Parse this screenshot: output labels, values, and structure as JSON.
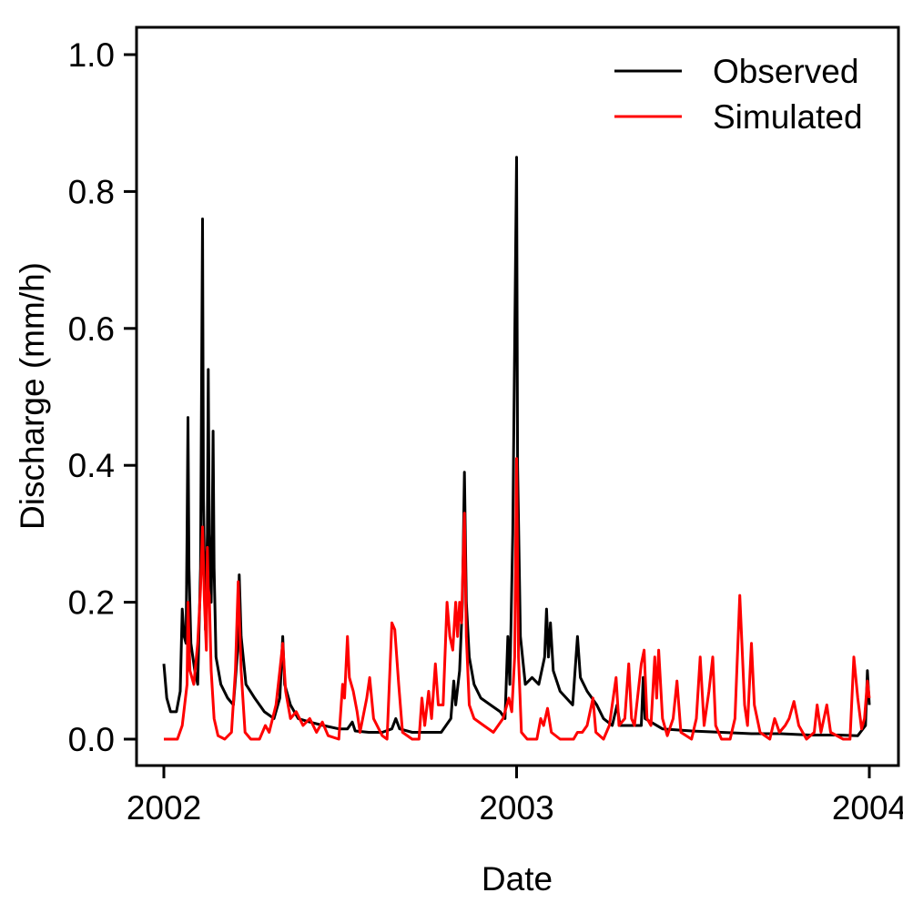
{
  "chart_data": {
    "type": "line",
    "xlabel": "Date",
    "ylabel": "Discharge (mm/h)",
    "xlim": [
      "2002-01-01",
      "2004-01-01"
    ],
    "ylim": [
      0,
      1.0
    ],
    "x_ticks": [
      "2002-01-01",
      "2003-01-01",
      "2004-01-01"
    ],
    "x_tick_labels": [
      "2002",
      "2003",
      "2004"
    ],
    "y_ticks": [
      0.0,
      0.2,
      0.4,
      0.6,
      0.8,
      1.0
    ],
    "y_tick_labels": [
      "0.0",
      "0.2",
      "0.4",
      "0.6",
      "0.8",
      "1.0"
    ],
    "grid": false,
    "legend_position": "top-right",
    "series": [
      {
        "name": "Observed",
        "color": "#000000",
        "points": [
          [
            "2002-01-01",
            0.11
          ],
          [
            "2002-01-04",
            0.06
          ],
          [
            "2002-01-08",
            0.04
          ],
          [
            "2002-01-14",
            0.04
          ],
          [
            "2002-01-18",
            0.07
          ],
          [
            "2002-01-20",
            0.19
          ],
          [
            "2002-01-22",
            0.15
          ],
          [
            "2002-01-24",
            0.14
          ],
          [
            "2002-01-25",
            0.3
          ],
          [
            "2002-01-26",
            0.47
          ],
          [
            "2002-01-27",
            0.25
          ],
          [
            "2002-01-29",
            0.14
          ],
          [
            "2002-02-02",
            0.1
          ],
          [
            "2002-02-05",
            0.08
          ],
          [
            "2002-02-08",
            0.25
          ],
          [
            "2002-02-10",
            0.76
          ],
          [
            "2002-02-11",
            0.35
          ],
          [
            "2002-02-13",
            0.16
          ],
          [
            "2002-02-15",
            0.3
          ],
          [
            "2002-02-16",
            0.54
          ],
          [
            "2002-02-17",
            0.3
          ],
          [
            "2002-02-19",
            0.2
          ],
          [
            "2002-02-20",
            0.3
          ],
          [
            "2002-02-21",
            0.45
          ],
          [
            "2002-02-22",
            0.25
          ],
          [
            "2002-02-24",
            0.12
          ],
          [
            "2002-03-01",
            0.08
          ],
          [
            "2002-03-08",
            0.06
          ],
          [
            "2002-03-14",
            0.05
          ],
          [
            "2002-03-19",
            0.14
          ],
          [
            "2002-03-20",
            0.24
          ],
          [
            "2002-03-22",
            0.15
          ],
          [
            "2002-03-27",
            0.08
          ],
          [
            "2002-04-05",
            0.06
          ],
          [
            "2002-04-15",
            0.04
          ],
          [
            "2002-04-25",
            0.03
          ],
          [
            "2002-05-01",
            0.06
          ],
          [
            "2002-05-04",
            0.15
          ],
          [
            "2002-05-06",
            0.08
          ],
          [
            "2002-05-12",
            0.05
          ],
          [
            "2002-05-20",
            0.03
          ],
          [
            "2002-06-01",
            0.025
          ],
          [
            "2002-06-15",
            0.02
          ],
          [
            "2002-07-01",
            0.015
          ],
          [
            "2002-07-10",
            0.015
          ],
          [
            "2002-07-15",
            0.025
          ],
          [
            "2002-07-18",
            0.012
          ],
          [
            "2002-08-01",
            0.01
          ],
          [
            "2002-08-15",
            0.01
          ],
          [
            "2002-08-25",
            0.015
          ],
          [
            "2002-08-29",
            0.03
          ],
          [
            "2002-09-02",
            0.015
          ],
          [
            "2002-09-15",
            0.01
          ],
          [
            "2002-10-01",
            0.01
          ],
          [
            "2002-10-15",
            0.01
          ],
          [
            "2002-10-25",
            0.03
          ],
          [
            "2002-10-28",
            0.085
          ],
          [
            "2002-10-30",
            0.05
          ],
          [
            "2002-11-03",
            0.1
          ],
          [
            "2002-11-06",
            0.2
          ],
          [
            "2002-11-08",
            0.39
          ],
          [
            "2002-11-10",
            0.2
          ],
          [
            "2002-11-13",
            0.12
          ],
          [
            "2002-11-18",
            0.08
          ],
          [
            "2002-11-25",
            0.06
          ],
          [
            "2002-12-05",
            0.05
          ],
          [
            "2002-12-15",
            0.04
          ],
          [
            "2002-12-20",
            0.03
          ],
          [
            "2002-12-23",
            0.15
          ],
          [
            "2002-12-25",
            0.08
          ],
          [
            "2002-12-28",
            0.3
          ],
          [
            "2003-01-01",
            0.85
          ],
          [
            "2003-01-02",
            0.4
          ],
          [
            "2003-01-05",
            0.15
          ],
          [
            "2003-01-10",
            0.08
          ],
          [
            "2003-01-17",
            0.09
          ],
          [
            "2003-01-24",
            0.08
          ],
          [
            "2003-01-30",
            0.12
          ],
          [
            "2003-02-01",
            0.19
          ],
          [
            "2003-02-03",
            0.12
          ],
          [
            "2003-02-05",
            0.17
          ],
          [
            "2003-02-08",
            0.1
          ],
          [
            "2003-02-15",
            0.07
          ],
          [
            "2003-02-28",
            0.05
          ],
          [
            "2003-03-05",
            0.15
          ],
          [
            "2003-03-08",
            0.09
          ],
          [
            "2003-03-15",
            0.07
          ],
          [
            "2003-03-25",
            0.05
          ],
          [
            "2003-04-01",
            0.03
          ],
          [
            "2003-04-10",
            0.02
          ],
          [
            "2003-04-15",
            0.05
          ],
          [
            "2003-04-18",
            0.02
          ],
          [
            "2003-05-01",
            0.02
          ],
          [
            "2003-05-10",
            0.02
          ],
          [
            "2003-05-12",
            0.09
          ],
          [
            "2003-05-14",
            0.03
          ],
          [
            "2003-06-01",
            0.015
          ],
          [
            "2003-07-01",
            0.012
          ],
          [
            "2003-08-01",
            0.01
          ],
          [
            "2003-09-01",
            0.008
          ],
          [
            "2003-10-01",
            0.008
          ],
          [
            "2003-11-01",
            0.006
          ],
          [
            "2003-12-01",
            0.006
          ],
          [
            "2003-12-20",
            0.005
          ],
          [
            "2003-12-28",
            0.02
          ],
          [
            "2003-12-30",
            0.1
          ],
          [
            "2004-01-01",
            0.05
          ]
        ]
      },
      {
        "name": "Simulated",
        "color": "#ff0000",
        "points": [
          [
            "2002-01-01",
            0.0
          ],
          [
            "2002-01-15",
            0.0
          ],
          [
            "2002-01-20",
            0.02
          ],
          [
            "2002-01-25",
            0.08
          ],
          [
            "2002-01-26",
            0.2
          ],
          [
            "2002-01-28",
            0.1
          ],
          [
            "2002-02-01",
            0.08
          ],
          [
            "2002-02-05",
            0.14
          ],
          [
            "2002-02-08",
            0.22
          ],
          [
            "2002-02-10",
            0.31
          ],
          [
            "2002-02-12",
            0.2
          ],
          [
            "2002-02-14",
            0.13
          ],
          [
            "2002-02-15",
            0.28
          ],
          [
            "2002-02-16",
            0.22
          ],
          [
            "2002-02-17",
            0.21
          ],
          [
            "2002-02-19",
            0.1
          ],
          [
            "2002-02-22",
            0.03
          ],
          [
            "2002-02-26",
            0.005
          ],
          [
            "2002-03-05",
            0.0
          ],
          [
            "2002-03-12",
            0.01
          ],
          [
            "2002-03-16",
            0.1
          ],
          [
            "2002-03-19",
            0.23
          ],
          [
            "2002-03-22",
            0.1
          ],
          [
            "2002-03-26",
            0.01
          ],
          [
            "2002-04-01",
            0.0
          ],
          [
            "2002-04-10",
            0.0
          ],
          [
            "2002-04-16",
            0.02
          ],
          [
            "2002-04-20",
            0.01
          ],
          [
            "2002-04-27",
            0.05
          ],
          [
            "2002-05-01",
            0.1
          ],
          [
            "2002-05-04",
            0.14
          ],
          [
            "2002-05-07",
            0.07
          ],
          [
            "2002-05-12",
            0.03
          ],
          [
            "2002-05-18",
            0.04
          ],
          [
            "2002-05-25",
            0.02
          ],
          [
            "2002-06-01",
            0.03
          ],
          [
            "2002-06-08",
            0.01
          ],
          [
            "2002-06-14",
            0.025
          ],
          [
            "2002-06-20",
            0.005
          ],
          [
            "2002-07-01",
            0.0
          ],
          [
            "2002-07-05",
            0.08
          ],
          [
            "2002-07-07",
            0.06
          ],
          [
            "2002-07-10",
            0.15
          ],
          [
            "2002-07-12",
            0.09
          ],
          [
            "2002-07-16",
            0.07
          ],
          [
            "2002-07-20",
            0.04
          ],
          [
            "2002-07-23",
            0.01
          ],
          [
            "2002-07-30",
            0.06
          ],
          [
            "2002-08-02",
            0.09
          ],
          [
            "2002-08-06",
            0.03
          ],
          [
            "2002-08-15",
            0.005
          ],
          [
            "2002-08-20",
            0.0
          ],
          [
            "2002-08-25",
            0.17
          ],
          [
            "2002-08-28",
            0.16
          ],
          [
            "2002-09-01",
            0.08
          ],
          [
            "2002-09-05",
            0.01
          ],
          [
            "2002-09-15",
            0.0
          ],
          [
            "2002-09-22",
            0.0
          ],
          [
            "2002-09-25",
            0.06
          ],
          [
            "2002-09-28",
            0.02
          ],
          [
            "2002-10-02",
            0.07
          ],
          [
            "2002-10-05",
            0.03
          ],
          [
            "2002-10-09",
            0.11
          ],
          [
            "2002-10-12",
            0.05
          ],
          [
            "2002-10-17",
            0.05
          ],
          [
            "2002-10-21",
            0.2
          ],
          [
            "2002-10-24",
            0.15
          ],
          [
            "2002-10-27",
            0.13
          ],
          [
            "2002-10-30",
            0.2
          ],
          [
            "2002-11-01",
            0.15
          ],
          [
            "2002-11-03",
            0.2
          ],
          [
            "2002-11-05",
            0.17
          ],
          [
            "2002-11-08",
            0.33
          ],
          [
            "2002-11-10",
            0.15
          ],
          [
            "2002-11-13",
            0.05
          ],
          [
            "2002-11-18",
            0.03
          ],
          [
            "2002-11-28",
            0.02
          ],
          [
            "2002-12-08",
            0.01
          ],
          [
            "2002-12-18",
            0.03
          ],
          [
            "2002-12-24",
            0.06
          ],
          [
            "2002-12-27",
            0.04
          ],
          [
            "2002-12-30",
            0.12
          ],
          [
            "2003-01-01",
            0.41
          ],
          [
            "2003-01-03",
            0.12
          ],
          [
            "2003-01-06",
            0.01
          ],
          [
            "2003-01-12",
            0.0
          ],
          [
            "2003-01-22",
            0.0
          ],
          [
            "2003-01-26",
            0.03
          ],
          [
            "2003-01-29",
            0.02
          ],
          [
            "2003-02-02",
            0.045
          ],
          [
            "2003-02-06",
            0.01
          ],
          [
            "2003-02-15",
            0.0
          ],
          [
            "2003-03-01",
            0.0
          ],
          [
            "2003-03-05",
            0.01
          ],
          [
            "2003-03-10",
            0.01
          ],
          [
            "2003-03-15",
            0.02
          ],
          [
            "2003-03-21",
            0.06
          ],
          [
            "2003-03-24",
            0.01
          ],
          [
            "2003-04-01",
            0.0
          ],
          [
            "2003-04-07",
            0.02
          ],
          [
            "2003-04-14",
            0.09
          ],
          [
            "2003-04-17",
            0.02
          ],
          [
            "2003-04-23",
            0.03
          ],
          [
            "2003-04-27",
            0.11
          ],
          [
            "2003-04-30",
            0.03
          ],
          [
            "2003-05-03",
            0.02
          ],
          [
            "2003-05-10",
            0.11
          ],
          [
            "2003-05-13",
            0.13
          ],
          [
            "2003-05-16",
            0.03
          ],
          [
            "2003-05-20",
            0.02
          ],
          [
            "2003-05-24",
            0.12
          ],
          [
            "2003-05-26",
            0.06
          ],
          [
            "2003-05-28",
            0.13
          ],
          [
            "2003-06-01",
            0.03
          ],
          [
            "2003-06-06",
            0.005
          ],
          [
            "2003-06-12",
            0.03
          ],
          [
            "2003-06-16",
            0.085
          ],
          [
            "2003-06-20",
            0.01
          ],
          [
            "2003-07-01",
            0.0
          ],
          [
            "2003-07-06",
            0.03
          ],
          [
            "2003-07-10",
            0.12
          ],
          [
            "2003-07-14",
            0.02
          ],
          [
            "2003-07-19",
            0.07
          ],
          [
            "2003-07-23",
            0.12
          ],
          [
            "2003-07-26",
            0.02
          ],
          [
            "2003-08-01",
            0.0
          ],
          [
            "2003-08-10",
            0.0
          ],
          [
            "2003-08-15",
            0.03
          ],
          [
            "2003-08-20",
            0.21
          ],
          [
            "2003-08-25",
            0.05
          ],
          [
            "2003-08-28",
            0.02
          ],
          [
            "2003-09-01",
            0.14
          ],
          [
            "2003-09-04",
            0.05
          ],
          [
            "2003-09-10",
            0.01
          ],
          [
            "2003-09-20",
            0.0
          ],
          [
            "2003-09-25",
            0.03
          ],
          [
            "2003-09-30",
            0.01
          ],
          [
            "2003-10-06",
            0.02
          ],
          [
            "2003-10-10",
            0.03
          ],
          [
            "2003-10-15",
            0.055
          ],
          [
            "2003-10-20",
            0.02
          ],
          [
            "2003-10-28",
            0.0
          ],
          [
            "2003-11-05",
            0.01
          ],
          [
            "2003-11-08",
            0.05
          ],
          [
            "2003-11-12",
            0.01
          ],
          [
            "2003-11-18",
            0.05
          ],
          [
            "2003-11-22",
            0.01
          ],
          [
            "2003-12-05",
            0.0
          ],
          [
            "2003-12-12",
            0.0
          ],
          [
            "2003-12-16",
            0.12
          ],
          [
            "2003-12-20",
            0.06
          ],
          [
            "2003-12-24",
            0.015
          ],
          [
            "2003-12-27",
            0.03
          ],
          [
            "2003-12-30",
            0.085
          ],
          [
            "2004-01-01",
            0.06
          ]
        ]
      }
    ]
  }
}
